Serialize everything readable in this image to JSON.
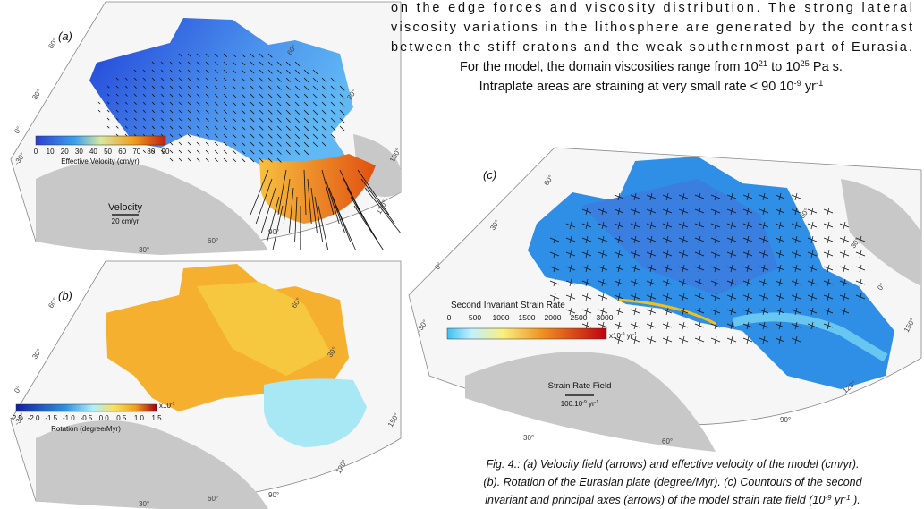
{
  "text": {
    "line1": "on the edge forces and viscosity distribution. The strong lateral",
    "line2": "viscosity variations in the lithosphere are generated by the contrast",
    "line3": "between the stiff  cratons and the weak  southernmost part of Eurasia.",
    "line4": [
      "For the model, the domain viscosities range from 10",
      "21",
      " to 10",
      "25",
      " Pa s."
    ],
    "line5": [
      "Intraplate areas are straining at very small rate < 90 10",
      "-9",
      " yr",
      "-1"
    ]
  },
  "panel_a": {
    "label": "(a)",
    "colorbar_title": "Effective Velocity (cm/yr)",
    "colorbar_ticks": [
      "0",
      "10",
      "20",
      "30",
      "40",
      "50",
      "60",
      "70",
      "80",
      "90"
    ],
    "legend_title": "Velocity",
    "legend_scale": "20 cm/yr",
    "map_labels": [
      "60°",
      "30°",
      "0°",
      "-30°",
      "30°",
      "60°",
      "90°",
      "120°",
      "150°",
      "60°",
      "30°"
    ]
  },
  "panel_b": {
    "label": "(b)",
    "colorbar_title": "Rotation (degree/Myr)",
    "colorbar_ticks": [
      "-2.5",
      "-2.0",
      "-1.5",
      "-1.0",
      "-0.5",
      "0.0",
      "0.5",
      "1.0",
      "1.5"
    ],
    "colorbar_unit": [
      "x10",
      "-1"
    ],
    "map_labels": [
      "60°",
      "30°",
      "0°",
      "-30°",
      "30°",
      "60°",
      "90°",
      "120°",
      "150°",
      "60°",
      "30°"
    ]
  },
  "panel_c": {
    "label": "(c)",
    "colorbar_title": "Second Invariant Strain Rate",
    "colorbar_ticks": [
      "0",
      "500",
      "1000",
      "1500",
      "2000",
      "2500",
      "3000"
    ],
    "colorbar_unit": [
      "x10",
      "-9",
      " yr",
      "-1"
    ],
    "legend_title": "Strain Rate Field",
    "legend_scale": [
      "100.10",
      "-9",
      " yr",
      "-1"
    ],
    "map_labels": [
      "60°",
      "30°",
      "0°",
      "-30°",
      "30°",
      "60°",
      "90°",
      "120°",
      "150°",
      "60°",
      "30°",
      "0°"
    ]
  },
  "caption": {
    "line1": "Fig. 4.: (a) Velocity field (arrows) and effective velocity of the model (cm/yr).",
    "line2": "(b). Rotation of the Eurasian plate (degree/Myr). (c) Countours of the second",
    "line3": [
      "invariant and principal axes (arrows) of the model strain rate field (10",
      "-9",
      " yr",
      "-1",
      " )."
    ]
  }
}
